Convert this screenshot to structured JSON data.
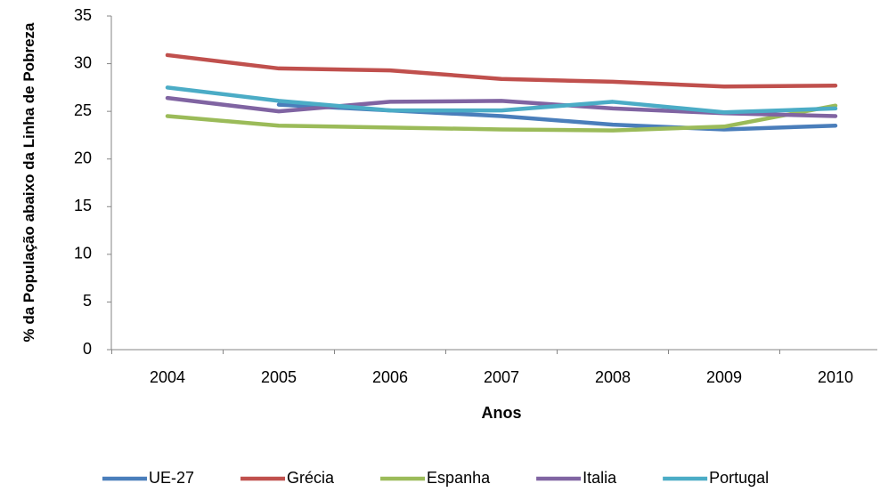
{
  "chart_data": {
    "type": "line",
    "y_label": "% da População abaixo da Linha de Pobreza",
    "x_label": "Anos",
    "categories": [
      "2004",
      "2005",
      "2006",
      "2007",
      "2008",
      "2009",
      "2010"
    ],
    "series": [
      {
        "name": "UE-27",
        "color": "#4a7ebb",
        "values": [
          null,
          25.7,
          25.1,
          24.5,
          23.6,
          23.1,
          23.5
        ]
      },
      {
        "name": "Grécia",
        "color": "#c0504d",
        "values": [
          30.9,
          29.5,
          29.3,
          28.4,
          28.1,
          27.6,
          27.7
        ]
      },
      {
        "name": "Espanha",
        "color": "#9bbb59",
        "values": [
          24.5,
          23.5,
          23.3,
          23.1,
          23.0,
          23.4,
          25.6
        ]
      },
      {
        "name": "Italia",
        "color": "#8064a2",
        "values": [
          26.4,
          25.0,
          26.0,
          26.1,
          25.3,
          24.8,
          24.5
        ]
      },
      {
        "name": "Portugal",
        "color": "#4bacc6",
        "values": [
          27.5,
          26.1,
          25.1,
          25.1,
          26.0,
          24.9,
          25.3
        ]
      }
    ],
    "ylim": [
      0,
      35
    ],
    "yticks": [
      0,
      5,
      10,
      15,
      20,
      25,
      30,
      35
    ],
    "grid": false,
    "legend": "bottom"
  }
}
